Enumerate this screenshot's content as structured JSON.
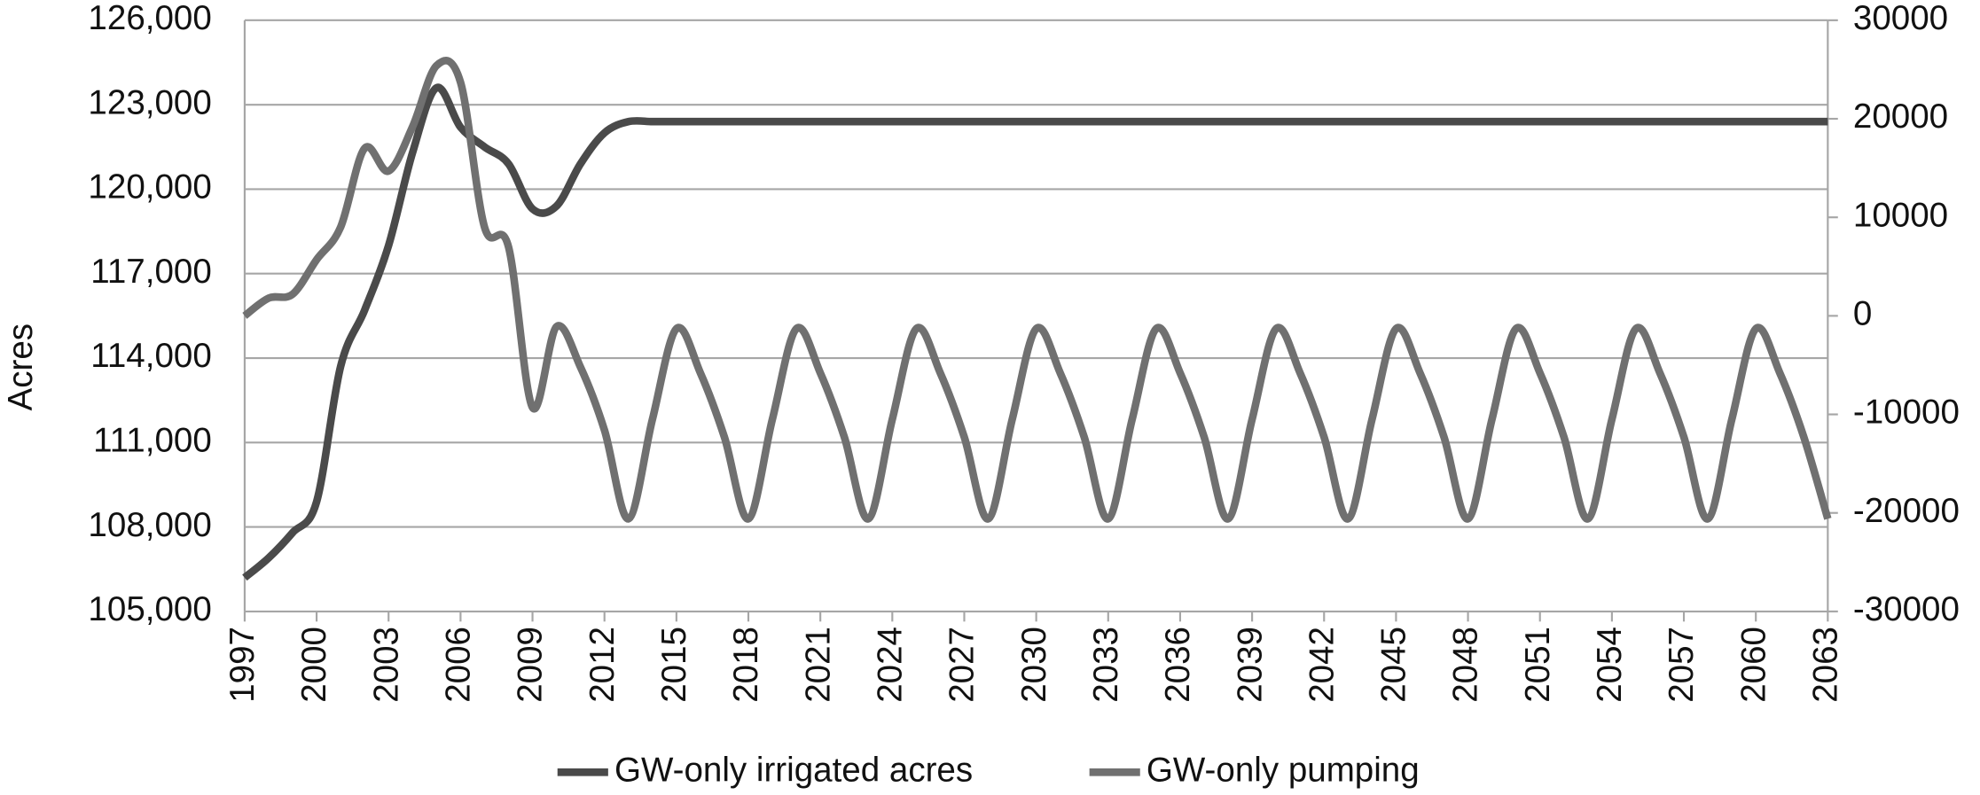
{
  "chart_data": {
    "type": "line",
    "ylabel": "Acres",
    "x": [
      1997,
      1998,
      1999,
      2000,
      2001,
      2002,
      2003,
      2004,
      2005,
      2006,
      2007,
      2008,
      2009,
      2010,
      2011,
      2012,
      2013,
      2014,
      2015,
      2016,
      2017,
      2018,
      2019,
      2020,
      2021,
      2022,
      2023,
      2024,
      2025,
      2026,
      2027,
      2028,
      2029,
      2030,
      2031,
      2032,
      2033,
      2034,
      2035,
      2036,
      2037,
      2038,
      2039,
      2040,
      2041,
      2042,
      2043,
      2044,
      2045,
      2046,
      2047,
      2048,
      2049,
      2050,
      2051,
      2052,
      2053,
      2054,
      2055,
      2056,
      2057,
      2058,
      2059,
      2060,
      2061,
      2062,
      2063
    ],
    "xlim": [
      1997,
      2063
    ],
    "xticks": [
      1997,
      2000,
      2003,
      2006,
      2009,
      2012,
      2015,
      2018,
      2021,
      2024,
      2027,
      2030,
      2033,
      2036,
      2039,
      2042,
      2045,
      2048,
      2051,
      2054,
      2057,
      2060,
      2063
    ],
    "ylim": [
      105000,
      126000
    ],
    "yticks": [
      {
        "value": 105000,
        "label": "105,000"
      },
      {
        "value": 108000,
        "label": "108,000"
      },
      {
        "value": 111000,
        "label": "111,000"
      },
      {
        "value": 114000,
        "label": "114,000"
      },
      {
        "value": 117000,
        "label": "117,000"
      },
      {
        "value": 120000,
        "label": "120,000"
      },
      {
        "value": 123000,
        "label": "123,000"
      },
      {
        "value": 126000,
        "label": "126,000"
      }
    ],
    "y2lim": [
      -30000,
      30000
    ],
    "y2ticks": [
      -30000,
      -20000,
      -10000,
      0,
      10000,
      20000,
      30000
    ],
    "grid": true,
    "legend": "bottom",
    "series": [
      {
        "name": "GW-only irrigated acres",
        "color": "#4a4a4a",
        "axis": "y",
        "values": [
          106200,
          106900,
          107800,
          108900,
          113700,
          115700,
          118000,
          121300,
          123600,
          122200,
          121500,
          120900,
          119300,
          119400,
          120900,
          122000,
          122400,
          122400,
          122400,
          122400,
          122400,
          122400,
          122400,
          122400,
          122400,
          122400,
          122400,
          122400,
          122400,
          122400,
          122400,
          122400,
          122400,
          122400,
          122400,
          122400,
          122400,
          122400,
          122400,
          122400,
          122400,
          122400,
          122400,
          122400,
          122400,
          122400,
          122400,
          122400,
          122400,
          122400,
          122400,
          122400,
          122400,
          122400,
          122400,
          122400,
          122400,
          122400,
          122400,
          122400,
          122400,
          122400,
          122400,
          122400,
          122400,
          122400,
          122400
        ]
      },
      {
        "name": "GW-only pumping",
        "color": "#707070",
        "axis": "y2",
        "values": [
          0,
          1800,
          2200,
          5700,
          9000,
          17000,
          14700,
          19200,
          25400,
          23700,
          9000,
          7000,
          -9300,
          -1100,
          -5200,
          -11600,
          -20600,
          -10500,
          -1300,
          -5800,
          -12300,
          -20600,
          -10500,
          -1300,
          -5800,
          -12300,
          -20600,
          -10500,
          -1300,
          -5800,
          -12300,
          -20600,
          -10500,
          -1300,
          -5800,
          -12300,
          -20600,
          -10500,
          -1300,
          -5800,
          -12300,
          -20600,
          -10500,
          -1300,
          -5800,
          -12300,
          -20600,
          -10500,
          -1300,
          -5800,
          -12300,
          -20600,
          -10500,
          -1300,
          -5800,
          -12300,
          -20600,
          -10500,
          -1300,
          -5800,
          -12300,
          -20600,
          -10500,
          -1300,
          -5800,
          -12300,
          -20600
        ]
      }
    ]
  }
}
